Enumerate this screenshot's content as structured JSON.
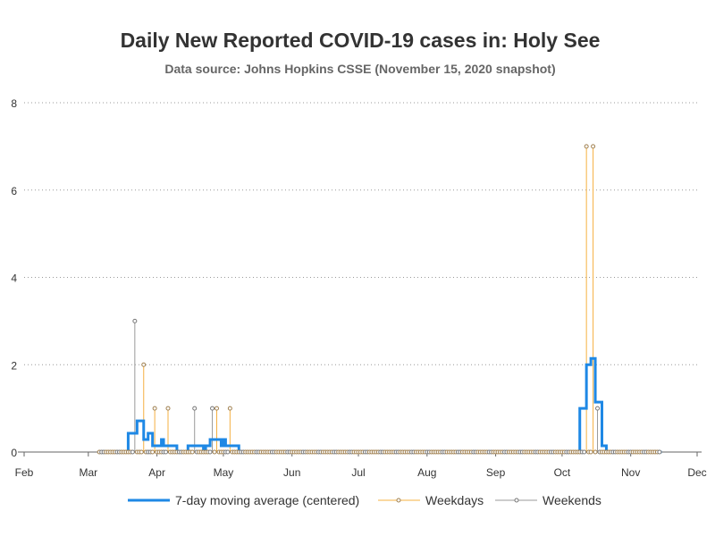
{
  "chart_data": {
    "type": "line",
    "title": "Daily New Reported COVID-19 cases in: Holy See",
    "subtitle": "Data source: Johns Hopkins CSSE (November 15, 2020 snapshot)",
    "x_axis": {
      "start": "2020-02-01",
      "end": "2020-12-01",
      "tick_labels": [
        {
          "date": "2020-02-01",
          "label": "Feb"
        },
        {
          "date": "2020-03-01",
          "label": "Mar"
        },
        {
          "date": "2020-04-01",
          "label": "Apr"
        },
        {
          "date": "2020-05-01",
          "label": "May"
        },
        {
          "date": "2020-06-01",
          "label": "Jun"
        },
        {
          "date": "2020-07-01",
          "label": "Jul"
        },
        {
          "date": "2020-08-01",
          "label": "Aug"
        },
        {
          "date": "2020-09-01",
          "label": "Sep"
        },
        {
          "date": "2020-10-01",
          "label": "Oct"
        },
        {
          "date": "2020-11-01",
          "label": "Nov"
        },
        {
          "date": "2020-12-01",
          "label": "Dec"
        }
      ]
    },
    "y_axis": {
      "min": 0,
      "max": 8,
      "ticks": [
        0,
        2,
        4,
        6,
        8
      ],
      "grid": "dotted horizontal"
    },
    "daily_data": {
      "first_date": "2020-03-06",
      "last_date": "2020-11-14",
      "nonzero": [
        {
          "date": "2020-03-22",
          "value": 3
        },
        {
          "date": "2020-03-26",
          "value": 2
        },
        {
          "date": "2020-03-31",
          "value": 1
        },
        {
          "date": "2020-04-06",
          "value": 1
        },
        {
          "date": "2020-04-18",
          "value": 1
        },
        {
          "date": "2020-04-26",
          "value": 1
        },
        {
          "date": "2020-04-28",
          "value": 1
        },
        {
          "date": "2020-05-04",
          "value": 1
        },
        {
          "date": "2020-10-12",
          "value": 7
        },
        {
          "date": "2020-10-15",
          "value": 7
        },
        {
          "date": "2020-10-17",
          "value": 1
        }
      ]
    },
    "series": [
      {
        "name": "7-day moving average (centered)",
        "color": "#1e88e5",
        "style": "thick line"
      },
      {
        "name": "Weekdays",
        "color": "#f5b041",
        "style": "needle with open circle marker"
      },
      {
        "name": "Weekends",
        "color": "#999999",
        "style": "needle with open circle marker"
      }
    ],
    "legend_position": "bottom-center"
  }
}
